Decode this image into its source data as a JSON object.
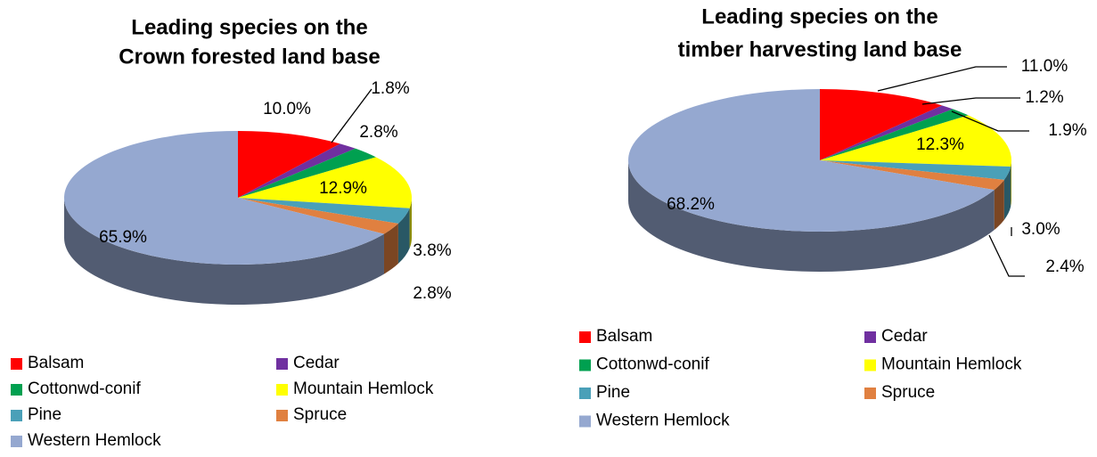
{
  "chart_data": [
    {
      "type": "pie",
      "title": [
        "Leading species on the",
        "Crown forested land base"
      ],
      "categories": [
        "Balsam",
        "Cedar",
        "Cottonwd-conif",
        "Mountain Hemlock",
        "Pine",
        "Spruce",
        "Western Hemlock"
      ],
      "values": [
        10.0,
        1.8,
        2.8,
        12.9,
        3.8,
        2.8,
        65.9
      ],
      "value_labels": [
        "10.0%",
        "1.8%",
        "2.8%",
        "12.9%",
        "3.8%",
        "2.8%",
        "65.9%"
      ],
      "colors": [
        "#ff0000",
        "#7030a0",
        "#00a050",
        "#ffff00",
        "#4aa0b8",
        "#e08040",
        "#95a8d0"
      ]
    },
    {
      "type": "pie",
      "title": [
        "Leading species on the",
        "timber harvesting land base"
      ],
      "categories": [
        "Balsam",
        "Cedar",
        "Cottonwd-conif",
        "Mountain Hemlock",
        "Pine",
        "Spruce",
        "Western Hemlock"
      ],
      "values": [
        11.0,
        1.2,
        1.9,
        12.3,
        3.0,
        2.4,
        68.2
      ],
      "value_labels": [
        "11.0%",
        "1.2%",
        "1.9%",
        "12.3%",
        "3.0%",
        "2.4%",
        "68.2%"
      ],
      "colors": [
        "#ff0000",
        "#7030a0",
        "#00a050",
        "#ffff00",
        "#4aa0b8",
        "#e08040",
        "#95a8d0"
      ]
    }
  ]
}
